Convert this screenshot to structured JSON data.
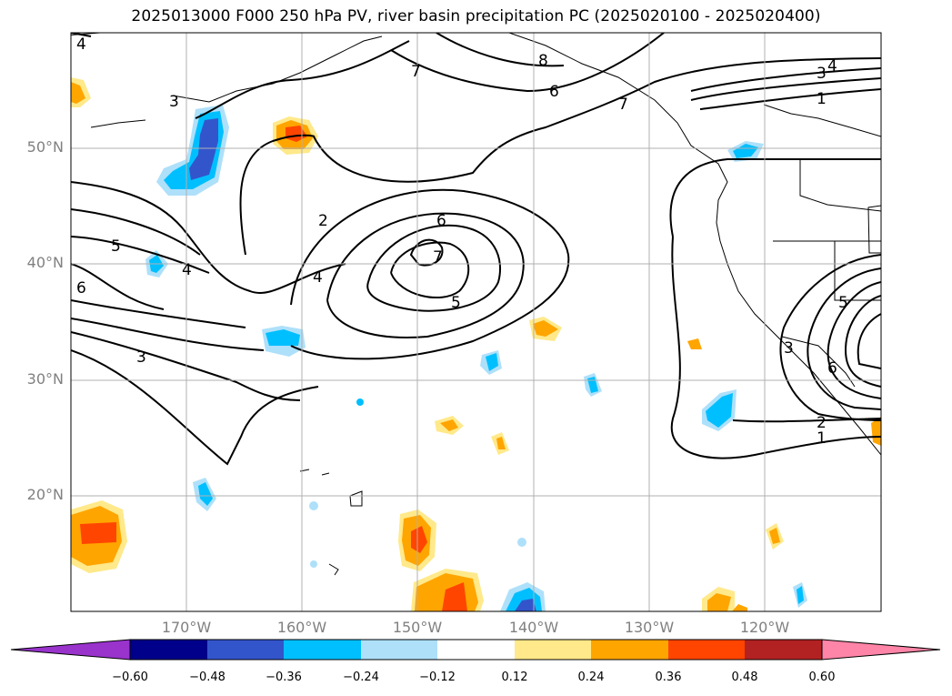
{
  "title": "2025013000 F000 250 hPa PV, river basin precipitation PC (2025020100 - 2025020400)",
  "lat_labels": [
    "50°N",
    "40°N",
    "30°N",
    "20°N"
  ],
  "lon_labels": [
    "170°W",
    "160°W",
    "150°W",
    "140°W",
    "130°W",
    "120°W"
  ],
  "contour_labels": [
    "4",
    "3",
    "7",
    "8",
    "6",
    "7",
    "3",
    "4",
    "1",
    "2",
    "6",
    "7",
    "5",
    "5",
    "4",
    "4",
    "6",
    "3",
    "2",
    "1",
    "3",
    "5",
    "6"
  ],
  "colorbar": {
    "ticks": [
      "−0.60",
      "−0.48",
      "−0.36",
      "−0.24",
      "−0.12",
      "0.12",
      "0.24",
      "0.36",
      "0.48",
      "0.60"
    ],
    "colors": [
      "#9933cc",
      "#00008b",
      "#3355cc",
      "#00bfff",
      "#aee0fa",
      "#ffffff",
      "#ffe98a",
      "#ffa500",
      "#ff4500",
      "#b22222",
      "#ff85a8"
    ]
  }
}
